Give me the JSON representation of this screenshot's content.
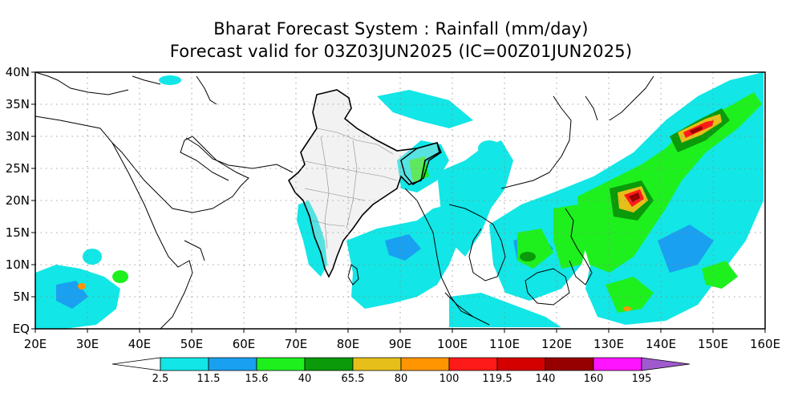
{
  "title": "Bharat Forecast System : Rainfall (mm/day)",
  "subtitle": "Forecast valid for 03Z03JUN2025 (IC=00Z01JUN2025)",
  "map": {
    "lon_range": [
      20,
      160
    ],
    "lat_range": [
      0,
      40
    ],
    "lat_ticks": [
      {
        "value": 0,
        "label": "EQ"
      },
      {
        "value": 5,
        "label": "5N"
      },
      {
        "value": 10,
        "label": "10N"
      },
      {
        "value": 15,
        "label": "15N"
      },
      {
        "value": 20,
        "label": "20N"
      },
      {
        "value": 25,
        "label": "25N"
      },
      {
        "value": 30,
        "label": "30N"
      },
      {
        "value": 35,
        "label": "35N"
      },
      {
        "value": 40,
        "label": "40N"
      }
    ],
    "lon_ticks": [
      {
        "value": 20,
        "label": "20E"
      },
      {
        "value": 30,
        "label": "30E"
      },
      {
        "value": 40,
        "label": "40E"
      },
      {
        "value": 50,
        "label": "50E"
      },
      {
        "value": 60,
        "label": "60E"
      },
      {
        "value": 70,
        "label": "70E"
      },
      {
        "value": 80,
        "label": "80E"
      },
      {
        "value": 90,
        "label": "90E"
      },
      {
        "value": 100,
        "label": "100E"
      },
      {
        "value": 110,
        "label": "110E"
      },
      {
        "value": 120,
        "label": "120E"
      },
      {
        "value": 130,
        "label": "130E"
      },
      {
        "value": 140,
        "label": "140E"
      },
      {
        "value": 150,
        "label": "150E"
      },
      {
        "value": 160,
        "label": "160E"
      }
    ],
    "grid": "dotted"
  },
  "colorbar": {
    "levels": [
      "2.5",
      "11.5",
      "15.6",
      "40",
      "65.5",
      "80",
      "100",
      "119.5",
      "140",
      "160",
      "195"
    ],
    "colors": [
      "#ffffff",
      "#12e6e6",
      "#1aa0f0",
      "#1ef01e",
      "#0a9a0a",
      "#e6bf1a",
      "#ff9500",
      "#ff1a1a",
      "#d40000",
      "#960000",
      "#ff14ff",
      "#a05ad0"
    ]
  }
}
